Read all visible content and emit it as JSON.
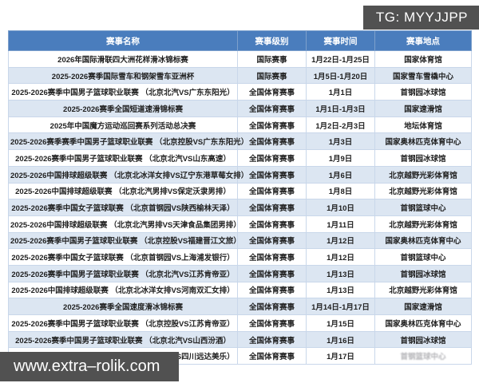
{
  "badges": {
    "tg": "TG: MYYJJPP",
    "site": "www.extra–rolik.com"
  },
  "table": {
    "columns": [
      "赛事名称",
      "赛事级别",
      "赛事时间",
      "赛事地点"
    ],
    "rows": [
      {
        "name": "2026年国际滑联四大洲花样滑冰锦标赛",
        "level": "国际赛事",
        "time": "1月22日-1月25日",
        "venue": "国家体育馆"
      },
      {
        "name": "2025-2026赛季国际雪车和钢架雪车亚洲杯",
        "level": "国际赛事",
        "time": "1月5日-1月20日",
        "venue": "国家雪车雪橇中心"
      },
      {
        "name": "2025-2026赛季中国男子篮球职业联赛 （北京北汽VS广东东阳光）",
        "level": "全国体育赛事",
        "time": "1月1日",
        "venue": "首钢园冰球馆"
      },
      {
        "name": "2025-2026赛季全国短道速滑锦标赛",
        "level": "全国体育赛事",
        "time": "1月1日-1月3日",
        "venue": "国家速滑馆"
      },
      {
        "name": "2025年中国魔方运动巡回赛系列活动总决赛",
        "level": "全国体育赛事",
        "time": "1月2日-2月3日",
        "venue": "地坛体育馆"
      },
      {
        "name": "2025-2026赛季赛季中国男子篮球职业联赛 （北京控股VS广东东阳光）",
        "level": "全国体育赛事",
        "time": "1月3日",
        "venue": "国家奥林匹克体育中心"
      },
      {
        "name": "2025-2026赛季中国男子篮球职业联赛 （北京北汽VS山东高速）",
        "level": "全国体育赛事",
        "time": "1月9日",
        "venue": "首钢园冰球馆"
      },
      {
        "name": "2025-2026中国排球超级联赛 （北京北冰洋女排VS辽宁东港草莓女排）",
        "level": "全国体育赛事",
        "time": "1月6日",
        "venue": "北京越野光彩体育馆"
      },
      {
        "name": "2025-2026中国排球超级联赛 （北京北汽男排VS保定沃隶男排）",
        "level": "全国体育赛事",
        "time": "1月8日",
        "venue": "北京越野光彩体育馆"
      },
      {
        "name": "2025-2026赛季中国女子篮球联赛 （北京首钢园VS陕西榆林天泽）",
        "level": "全国体育赛事",
        "time": "1月10日",
        "venue": "首钢篮球中心"
      },
      {
        "name": "2025-2026中国排球超级联赛 （北京北汽男排VS天津食品集团男排）",
        "level": "全国体育赛事",
        "time": "1月11日",
        "venue": "北京越野光彩体育馆"
      },
      {
        "name": "2025-2026赛季中国男子篮球职业联赛 （北京控股VS福建晋江文旅）",
        "level": "全国体育赛事",
        "time": "1月12日",
        "venue": "国家奥林匹克体育中心"
      },
      {
        "name": "2025-2026赛季中国女子篮球联赛 （北京首钢园VS上海浦发银行）",
        "level": "全国体育赛事",
        "time": "1月12日",
        "venue": "首钢篮球中心"
      },
      {
        "name": "2025-2026赛季中国男子篮球职业联赛 （北京北汽VS江苏肯帝亚）",
        "level": "全国体育赛事",
        "time": "1月13日",
        "venue": "首钢园冰球馆"
      },
      {
        "name": "2025-2026中国排球超级联赛 （北京北冰洋女排VS河南双汇女排）",
        "level": "全国体育赛事",
        "time": "1月13日",
        "venue": "北京越野光彩体育馆"
      },
      {
        "name": "2025-2026赛季全国速度滑冰锦标赛",
        "level": "全国体育赛事",
        "time": "1月14日-1月17日",
        "venue": "国家速滑馆"
      },
      {
        "name": "2025-2026赛季中国男子篮球职业联赛 （北京控股VS江苏肯帝亚）",
        "level": "全国体育赛事",
        "time": "1月15日",
        "venue": "国家奥林匹克体育中心"
      },
      {
        "name": "2025-2026赛季中国男子篮球职业联赛 （北京北汽VS山西汾酒）",
        "level": "全国体育赛事",
        "time": "1月16日",
        "venue": "首钢园冰球馆"
      },
      {
        "name": "2025-2026赛季中国女子篮球联赛 （北京首钢园VS四川远达美乐）",
        "level": "全国体育赛事",
        "time": "1月17日",
        "venue": "首钢篮球中心",
        "venue_obscured": true
      }
    ]
  },
  "colors": {
    "header_bg": "#4a7dbd",
    "row_alt_bg": "#dce6f2",
    "border": "#c9d7ea",
    "badge_bg": "#515151"
  }
}
